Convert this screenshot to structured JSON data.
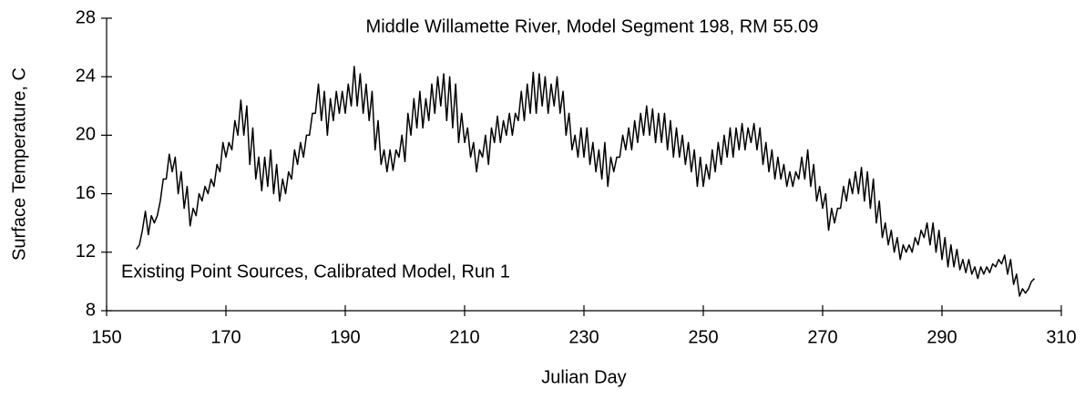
{
  "chart_data": {
    "type": "line",
    "title": "Middle Willamette River, Model Segment 198, RM 55.09",
    "annotation": "Existing Point Sources, Calibrated Model, Run 1",
    "xlabel": "Julian Day",
    "ylabel": "Surface Temperature, C",
    "xlim": [
      150,
      310
    ],
    "xticks": [
      150,
      170,
      190,
      210,
      230,
      250,
      270,
      290,
      310
    ],
    "ylim": [
      8,
      28
    ],
    "yticks": [
      8,
      12,
      16,
      20,
      24,
      28
    ],
    "grid": false,
    "x": [
      155,
      155.5,
      156,
      156.5,
      157,
      157.5,
      158,
      158.5,
      159,
      159.5,
      160,
      160.5,
      161,
      161.5,
      162,
      162.5,
      163,
      163.5,
      164,
      164.5,
      165,
      165.5,
      166,
      166.5,
      167,
      167.5,
      168,
      168.5,
      169,
      169.5,
      170,
      170.5,
      171,
      171.5,
      172,
      172.5,
      173,
      173.5,
      174,
      174.5,
      175,
      175.5,
      176,
      176.5,
      177,
      177.5,
      178,
      178.5,
      179,
      179.5,
      180,
      180.5,
      181,
      181.5,
      182,
      182.5,
      183,
      183.5,
      184,
      184.5,
      185,
      185.5,
      186,
      186.5,
      187,
      187.5,
      188,
      188.5,
      189,
      189.5,
      190,
      190.5,
      191,
      191.5,
      192,
      192.5,
      193,
      193.5,
      194,
      194.5,
      195,
      195.5,
      196,
      196.5,
      197,
      197.5,
      198,
      198.5,
      199,
      199.5,
      200,
      200.5,
      201,
      201.5,
      202,
      202.5,
      203,
      203.5,
      204,
      204.5,
      205,
      205.5,
      206,
      206.5,
      207,
      207.5,
      208,
      208.5,
      209,
      209.5,
      210,
      210.5,
      211,
      211.5,
      212,
      212.5,
      213,
      213.5,
      214,
      214.5,
      215,
      215.5,
      216,
      216.5,
      217,
      217.5,
      218,
      218.5,
      219,
      219.5,
      220,
      220.5,
      221,
      221.5,
      222,
      222.5,
      223,
      223.5,
      224,
      224.5,
      225,
      225.5,
      226,
      226.5,
      227,
      227.5,
      228,
      228.5,
      229,
      229.5,
      230,
      230.5,
      231,
      231.5,
      232,
      232.5,
      233,
      233.5,
      234,
      234.5,
      235,
      235.5,
      236,
      236.5,
      237,
      237.5,
      238,
      238.5,
      239,
      239.5,
      240,
      240.5,
      241,
      241.5,
      242,
      242.5,
      243,
      243.5,
      244,
      244.5,
      245,
      245.5,
      246,
      246.5,
      247,
      247.5,
      248,
      248.5,
      249,
      249.5,
      250,
      250.5,
      251,
      251.5,
      252,
      252.5,
      253,
      253.5,
      254,
      254.5,
      255,
      255.5,
      256,
      256.5,
      257,
      257.5,
      258,
      258.5,
      259,
      259.5,
      260,
      260.5,
      261,
      261.5,
      262,
      262.5,
      263,
      263.5,
      264,
      264.5,
      265,
      265.5,
      266,
      266.5,
      267,
      267.5,
      268,
      268.5,
      269,
      269.5,
      270,
      270.5,
      271,
      271.5,
      272,
      272.5,
      273,
      273.5,
      274,
      274.5,
      275,
      275.5,
      276,
      276.5,
      277,
      277.5,
      278,
      278.5,
      279,
      279.5,
      280,
      280.5,
      281,
      281.5,
      282,
      282.5,
      283,
      283.5,
      284,
      284.5,
      285,
      285.5,
      286,
      286.5,
      287,
      287.5,
      288,
      288.5,
      289,
      289.5,
      290,
      290.5,
      291,
      291.5,
      292,
      292.5,
      293,
      293.5,
      294,
      294.5,
      295,
      295.5,
      296,
      296.5,
      297,
      297.5,
      298,
      298.5,
      299,
      299.5,
      300,
      300.5,
      301,
      301.5,
      302,
      302.5,
      303,
      303.5,
      304,
      304.5,
      305,
      305.5
    ],
    "series": [
      {
        "color": "#000000",
        "values": [
          12.2,
          12.5,
          13.5,
          14.8,
          13.2,
          14.5,
          14,
          14.5,
          15.5,
          17,
          17,
          18.7,
          17.5,
          18.5,
          16,
          17.5,
          15,
          16.5,
          13.8,
          15,
          14.5,
          16,
          15.5,
          16.5,
          16,
          17,
          16.5,
          18,
          17.5,
          19.5,
          18.5,
          19.5,
          19,
          21,
          20,
          22.4,
          20,
          22,
          18,
          20.5,
          17,
          18.5,
          16.2,
          18.5,
          16.5,
          19,
          16,
          18,
          15.5,
          17,
          16,
          17.5,
          17,
          19,
          18,
          19.5,
          18.5,
          20,
          20,
          21.5,
          21.5,
          23.5,
          21,
          23,
          20,
          22.5,
          21,
          23,
          21.5,
          23,
          21.5,
          23.5,
          22,
          24.7,
          22,
          24.2,
          21.5,
          23.5,
          21,
          23,
          19,
          21,
          18,
          19,
          17.5,
          19,
          17.6,
          19,
          18.5,
          20,
          18.2,
          21.5,
          20,
          22.5,
          20.5,
          23,
          20.5,
          22.5,
          21,
          23.5,
          21.5,
          24,
          22,
          24.2,
          21,
          24,
          20.5,
          23.5,
          19.5,
          21.5,
          19.5,
          20.5,
          18.5,
          19.5,
          17.5,
          19,
          18.5,
          20,
          18,
          20.5,
          19.5,
          21.3,
          19.5,
          21,
          20,
          21.5,
          20,
          21.5,
          21,
          23,
          21,
          23.5,
          21.5,
          24.3,
          21.5,
          24.2,
          22,
          24,
          21.5,
          23.5,
          22,
          24,
          21.5,
          23,
          20,
          21.5,
          19,
          20,
          18.5,
          20.5,
          18.5,
          20.5,
          18,
          19.5,
          17.5,
          19,
          17,
          19.5,
          16.5,
          18.5,
          17.5,
          18.5,
          18.5,
          20,
          19,
          20.5,
          19,
          21,
          19.5,
          21.5,
          20,
          22,
          20,
          21.8,
          19.5,
          21.5,
          19.5,
          21.5,
          19,
          21,
          18.5,
          20.5,
          18.5,
          20,
          18,
          19.5,
          17.5,
          19,
          16.5,
          18.5,
          16.5,
          18,
          17,
          19,
          17.5,
          19.5,
          18,
          20,
          18.5,
          20.5,
          18.5,
          20.5,
          19,
          20.8,
          19,
          20.5,
          19.5,
          20.8,
          19,
          20.5,
          18,
          19.5,
          17.5,
          19,
          17,
          18.5,
          17,
          18,
          16.5,
          17.5,
          16.5,
          17.5,
          17,
          18.5,
          17,
          19,
          16.5,
          18,
          15.5,
          16.5,
          15,
          16,
          13.5,
          15,
          14,
          15,
          15,
          16.5,
          15.5,
          17,
          16,
          17.5,
          16,
          17.8,
          15.5,
          17.5,
          15,
          17,
          14,
          15.5,
          13,
          14,
          12.5,
          13.5,
          12,
          13,
          11.5,
          12.5,
          12,
          12.5,
          12,
          13,
          12.5,
          13.5,
          13,
          14,
          12.5,
          14,
          12,
          13.5,
          11.5,
          13,
          11,
          12.5,
          11,
          12.2,
          10.8,
          11.5,
          10.6,
          11.5,
          10.5,
          11,
          10.2,
          11,
          10.5,
          11,
          10.6,
          11.2,
          11,
          11.5,
          11.2,
          11.8,
          10.5,
          11.5,
          9.8,
          10.5,
          9,
          9.5,
          9.2,
          9.5,
          10,
          10.2
        ]
      }
    ]
  }
}
